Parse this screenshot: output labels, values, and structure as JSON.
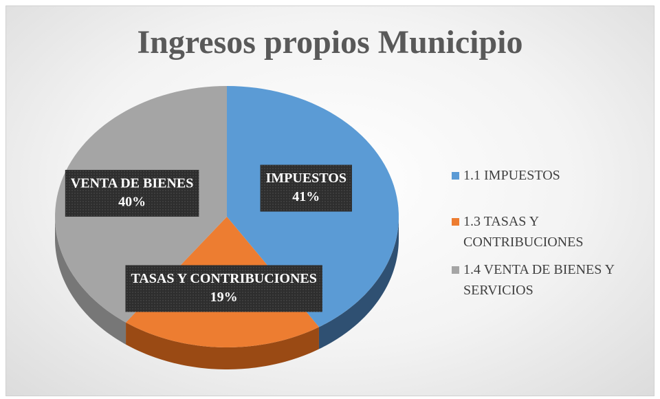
{
  "chart_data": {
    "type": "pie",
    "title": "Ingresos propios  Municipio",
    "categories": [
      "1.1 IMPUESTOS",
      "1.3 TASAS Y CONTRIBUCIONES",
      "1.4 VENTA DE BIENES Y SERVICIOS"
    ],
    "values": [
      41,
      19,
      40
    ],
    "value_labels": [
      "41%",
      "19%",
      "40%"
    ],
    "label_names": [
      "IMPUESTOS",
      "TASAS Y CONTRIBUCIONES",
      "VENTA DE BIENES"
    ],
    "colors": [
      "#5b9bd5",
      "#ed7d31",
      "#a5a5a5"
    ],
    "side_colors": [
      "#2f5072",
      "#9a4a14",
      "#777777"
    ],
    "legend": "right"
  }
}
